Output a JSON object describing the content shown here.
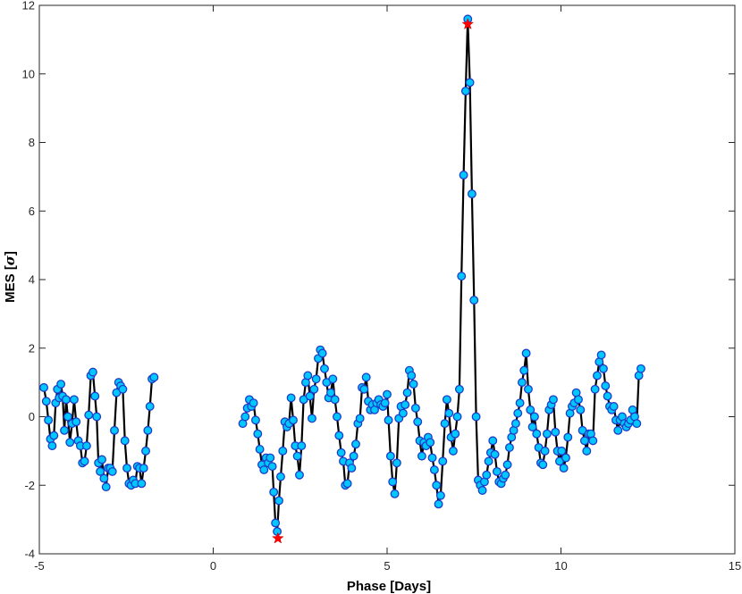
{
  "chart_data": {
    "type": "scatter",
    "xlabel": "Phase [Days]",
    "ylabel_prefix": "MES [",
    "ylabel_symbol": "σ",
    "ylabel_suffix": "]",
    "xlim": [
      -5,
      15
    ],
    "ylim": [
      -4,
      12
    ],
    "xticks": [
      -5,
      0,
      5,
      10,
      15
    ],
    "yticks": [
      -4,
      -2,
      0,
      2,
      4,
      6,
      8,
      10,
      12
    ],
    "grid": false,
    "colors": {
      "line": "#000000",
      "marker_fill": "#00c8ff",
      "marker_edge": "#1f3cc8",
      "star": "#ff0000"
    },
    "series": [
      {
        "points": [
          [
            -4.87,
            0.85
          ],
          [
            -4.8,
            0.45
          ],
          [
            -4.74,
            -0.1
          ],
          [
            -4.68,
            -0.65
          ],
          [
            -4.63,
            -0.85
          ],
          [
            -4.58,
            -0.55
          ],
          [
            -4.53,
            0.4
          ],
          [
            -4.48,
            0.8
          ],
          [
            -4.43,
            0.55
          ],
          [
            -4.38,
            0.95
          ],
          [
            -4.33,
            0.6
          ],
          [
            -4.28,
            -0.4
          ],
          [
            -4.23,
            0.5
          ],
          [
            -4.18,
            0.0
          ],
          [
            -4.12,
            -0.75
          ],
          [
            -4.06,
            -0.2
          ],
          [
            -4.0,
            0.5
          ],
          [
            -3.94,
            -0.15
          ],
          [
            -3.88,
            -0.7
          ],
          [
            -3.82,
            -0.85
          ],
          [
            -3.76,
            -1.35
          ],
          [
            -3.7,
            -1.3
          ],
          [
            -3.64,
            -0.85
          ],
          [
            -3.58,
            0.05
          ],
          [
            -3.52,
            1.2
          ],
          [
            -3.46,
            1.3
          ],
          [
            -3.4,
            0.6
          ],
          [
            -3.35,
            0.0
          ],
          [
            -3.3,
            -1.35
          ],
          [
            -3.25,
            -1.6
          ],
          [
            -3.2,
            -1.25
          ],
          [
            -3.14,
            -1.8
          ],
          [
            -3.08,
            -2.05
          ],
          [
            -3.02,
            -1.5
          ],
          [
            -2.96,
            -1.5
          ],
          [
            -2.9,
            -1.6
          ],
          [
            -2.84,
            -0.4
          ],
          [
            -2.78,
            0.7
          ],
          [
            -2.72,
            1.0
          ],
          [
            -2.66,
            0.9
          ],
          [
            -2.6,
            0.8
          ],
          [
            -2.54,
            -0.7
          ],
          [
            -2.48,
            -1.5
          ],
          [
            -2.42,
            -1.95
          ],
          [
            -2.36,
            -2.0
          ],
          [
            -2.3,
            -1.85
          ],
          [
            -2.24,
            -1.95
          ],
          [
            -2.18,
            -1.45
          ],
          [
            -2.12,
            -1.5
          ],
          [
            -2.06,
            -1.95
          ],
          [
            -2.0,
            -1.5
          ],
          [
            -1.94,
            -1.0
          ],
          [
            -1.88,
            -0.4
          ],
          [
            -1.82,
            0.3
          ],
          [
            -1.76,
            1.1
          ],
          [
            -1.7,
            1.15
          ],
          [
            0.85,
            -0.2
          ],
          [
            0.92,
            0.0
          ],
          [
            0.98,
            0.25
          ],
          [
            1.04,
            0.5
          ],
          [
            1.1,
            0.3
          ],
          [
            1.16,
            0.4
          ],
          [
            1.22,
            -0.1
          ],
          [
            1.28,
            -0.5
          ],
          [
            1.34,
            -0.95
          ],
          [
            1.4,
            -1.4
          ],
          [
            1.46,
            -1.55
          ],
          [
            1.52,
            -1.2
          ],
          [
            1.58,
            -1.35
          ],
          [
            1.64,
            -1.2
          ],
          [
            1.7,
            -1.45
          ],
          [
            1.74,
            -2.2
          ],
          [
            1.79,
            -3.1
          ],
          [
            1.84,
            -3.35
          ],
          [
            1.89,
            -2.45
          ],
          [
            1.94,
            -1.75
          ],
          [
            2.0,
            -1.0
          ],
          [
            2.06,
            -0.15
          ],
          [
            2.12,
            -0.3
          ],
          [
            2.18,
            -0.2
          ],
          [
            2.24,
            0.55
          ],
          [
            2.3,
            -0.1
          ],
          [
            2.36,
            -0.85
          ],
          [
            2.42,
            -1.15
          ],
          [
            2.48,
            -1.7
          ],
          [
            2.54,
            -0.85
          ],
          [
            2.6,
            0.5
          ],
          [
            2.66,
            1.0
          ],
          [
            2.72,
            1.2
          ],
          [
            2.78,
            0.6
          ],
          [
            2.84,
            -0.05
          ],
          [
            2.9,
            0.8
          ],
          [
            2.96,
            1.1
          ],
          [
            3.02,
            1.7
          ],
          [
            3.08,
            1.95
          ],
          [
            3.14,
            1.85
          ],
          [
            3.2,
            1.4
          ],
          [
            3.26,
            1.0
          ],
          [
            3.32,
            0.55
          ],
          [
            3.38,
            0.7
          ],
          [
            3.44,
            1.1
          ],
          [
            3.5,
            0.5
          ],
          [
            3.56,
            0.0
          ],
          [
            3.62,
            -0.55
          ],
          [
            3.68,
            -1.05
          ],
          [
            3.74,
            -1.3
          ],
          [
            3.8,
            -2.0
          ],
          [
            3.86,
            -1.95
          ],
          [
            3.92,
            -1.35
          ],
          [
            3.98,
            -1.5
          ],
          [
            4.04,
            -1.15
          ],
          [
            4.1,
            -0.8
          ],
          [
            4.16,
            -0.2
          ],
          [
            4.22,
            -0.05
          ],
          [
            4.28,
            0.85
          ],
          [
            4.34,
            0.8
          ],
          [
            4.4,
            1.15
          ],
          [
            4.46,
            0.45
          ],
          [
            4.52,
            0.2
          ],
          [
            4.58,
            0.35
          ],
          [
            4.64,
            0.2
          ],
          [
            4.7,
            0.4
          ],
          [
            4.76,
            0.5
          ],
          [
            4.82,
            0.35
          ],
          [
            4.88,
            0.3
          ],
          [
            4.94,
            0.4
          ],
          [
            5.0,
            0.65
          ],
          [
            5.04,
            -0.1
          ],
          [
            5.1,
            -1.15
          ],
          [
            5.16,
            -1.9
          ],
          [
            5.22,
            -2.25
          ],
          [
            5.28,
            -1.35
          ],
          [
            5.34,
            -0.05
          ],
          [
            5.4,
            0.3
          ],
          [
            5.46,
            0.1
          ],
          [
            5.52,
            0.35
          ],
          [
            5.58,
            0.7
          ],
          [
            5.64,
            1.35
          ],
          [
            5.7,
            1.2
          ],
          [
            5.76,
            0.95
          ],
          [
            5.82,
            0.25
          ],
          [
            5.88,
            -0.15
          ],
          [
            5.94,
            -0.7
          ],
          [
            6.0,
            -1.15
          ],
          [
            6.06,
            -0.75
          ],
          [
            6.12,
            -0.85
          ],
          [
            6.18,
            -0.6
          ],
          [
            6.24,
            -0.75
          ],
          [
            6.3,
            -1.2
          ],
          [
            6.36,
            -1.55
          ],
          [
            6.42,
            -2.0
          ],
          [
            6.48,
            -2.55
          ],
          [
            6.54,
            -2.3
          ],
          [
            6.6,
            -1.3
          ],
          [
            6.66,
            -0.2
          ],
          [
            6.72,
            0.5
          ],
          [
            6.78,
            0.1
          ],
          [
            6.84,
            -0.6
          ],
          [
            6.9,
            -1.0
          ],
          [
            6.96,
            -0.5
          ],
          [
            7.02,
            0.0
          ],
          [
            7.08,
            0.8
          ],
          [
            7.14,
            4.1
          ],
          [
            7.2,
            7.05
          ],
          [
            7.26,
            9.5
          ],
          [
            7.32,
            11.6
          ],
          [
            7.38,
            9.75
          ],
          [
            7.44,
            6.5
          ],
          [
            7.5,
            3.4
          ],
          [
            7.56,
            0.0
          ],
          [
            7.62,
            -1.85
          ],
          [
            7.68,
            -2.0
          ],
          [
            7.74,
            -2.15
          ],
          [
            7.8,
            -1.9
          ],
          [
            7.86,
            -1.7
          ],
          [
            7.92,
            -1.3
          ],
          [
            7.98,
            -1.05
          ],
          [
            8.04,
            -0.7
          ],
          [
            8.1,
            -1.1
          ],
          [
            8.16,
            -1.6
          ],
          [
            8.22,
            -1.9
          ],
          [
            8.28,
            -1.95
          ],
          [
            8.34,
            -1.8
          ],
          [
            8.4,
            -1.7
          ],
          [
            8.46,
            -1.4
          ],
          [
            8.52,
            -0.9
          ],
          [
            8.58,
            -0.6
          ],
          [
            8.64,
            -0.4
          ],
          [
            8.7,
            -0.2
          ],
          [
            8.76,
            0.1
          ],
          [
            8.82,
            0.4
          ],
          [
            8.88,
            1.0
          ],
          [
            8.94,
            1.35
          ],
          [
            9.0,
            1.85
          ],
          [
            9.06,
            0.8
          ],
          [
            9.12,
            0.2
          ],
          [
            9.18,
            -0.3
          ],
          [
            9.24,
            0.0
          ],
          [
            9.3,
            -0.5
          ],
          [
            9.36,
            -0.9
          ],
          [
            9.42,
            -1.35
          ],
          [
            9.48,
            -1.4
          ],
          [
            9.54,
            -1.0
          ],
          [
            9.6,
            -0.5
          ],
          [
            9.66,
            0.2
          ],
          [
            9.72,
            0.35
          ],
          [
            9.78,
            0.5
          ],
          [
            9.84,
            -0.45
          ],
          [
            9.9,
            -1.0
          ],
          [
            9.96,
            -1.3
          ],
          [
            10.02,
            -1.0
          ],
          [
            10.08,
            -1.5
          ],
          [
            10.14,
            -1.2
          ],
          [
            10.2,
            -0.6
          ],
          [
            10.26,
            0.1
          ],
          [
            10.32,
            0.3
          ],
          [
            10.38,
            0.4
          ],
          [
            10.44,
            0.7
          ],
          [
            10.5,
            0.5
          ],
          [
            10.56,
            0.2
          ],
          [
            10.62,
            -0.4
          ],
          [
            10.68,
            -0.7
          ],
          [
            10.74,
            -1.0
          ],
          [
            10.8,
            -0.5
          ],
          [
            10.86,
            -0.5
          ],
          [
            10.92,
            -0.7
          ],
          [
            10.98,
            0.8
          ],
          [
            11.04,
            1.2
          ],
          [
            11.1,
            1.6
          ],
          [
            11.16,
            1.8
          ],
          [
            11.22,
            1.4
          ],
          [
            11.28,
            0.9
          ],
          [
            11.34,
            0.6
          ],
          [
            11.4,
            0.3
          ],
          [
            11.46,
            0.2
          ],
          [
            11.52,
            0.3
          ],
          [
            11.58,
            -0.1
          ],
          [
            11.64,
            -0.4
          ],
          [
            11.7,
            -0.1
          ],
          [
            11.76,
            0.0
          ],
          [
            11.82,
            -0.2
          ],
          [
            11.88,
            -0.3
          ],
          [
            11.94,
            -0.2
          ],
          [
            12.0,
            -0.1
          ],
          [
            12.06,
            0.2
          ],
          [
            12.12,
            0.0
          ],
          [
            12.18,
            -0.2
          ],
          [
            12.24,
            1.2
          ],
          [
            12.3,
            1.4
          ]
        ]
      }
    ],
    "markers": [
      {
        "symbol": "star",
        "x": 7.32,
        "y": 11.45
      },
      {
        "symbol": "star",
        "x": 1.86,
        "y": -3.55
      }
    ]
  }
}
